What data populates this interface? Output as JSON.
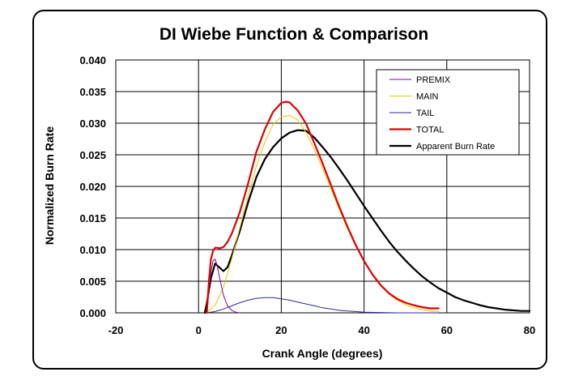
{
  "chart_data": {
    "type": "line",
    "title": "DI Wiebe Function & Comparison",
    "xlabel": "Crank Angle (degrees)",
    "ylabel": "Normalized Burn Rate",
    "xlim": [
      -20,
      80
    ],
    "ylim": [
      0,
      0.04
    ],
    "xticks": [
      "-20",
      "0",
      "20",
      "40",
      "60",
      "80"
    ],
    "yticks": [
      "0.000",
      "0.005",
      "0.010",
      "0.015",
      "0.020",
      "0.025",
      "0.030",
      "0.035",
      "0.040"
    ],
    "grid": true,
    "legend_position": "top-right",
    "series": [
      {
        "name": "PREMIX",
        "color": "#8000a0",
        "width": 1,
        "x": [
          2,
          2.5,
          3,
          3.5,
          4,
          4.5,
          5,
          6,
          7,
          8,
          9,
          10
        ],
        "y": [
          0,
          0.0035,
          0.0065,
          0.0082,
          0.0085,
          0.0075,
          0.0058,
          0.0028,
          0.0011,
          0.0004,
          0.0001,
          0
        ]
      },
      {
        "name": "MAIN",
        "color": "#e8c800",
        "width": 1,
        "x": [
          2,
          4,
          6,
          8,
          10,
          12,
          14,
          16,
          18,
          20,
          22,
          24,
          26,
          28,
          30,
          32,
          34,
          36,
          38,
          40,
          42,
          44,
          46,
          48,
          50,
          52,
          54,
          56,
          58
        ],
        "y": [
          0,
          0.0012,
          0.004,
          0.0085,
          0.0135,
          0.0185,
          0.0232,
          0.027,
          0.0298,
          0.031,
          0.0312,
          0.0305,
          0.0285,
          0.0258,
          0.0228,
          0.0196,
          0.0164,
          0.0133,
          0.0105,
          0.0081,
          0.006,
          0.0043,
          0.003,
          0.002,
          0.0013,
          0.0008,
          0.0005,
          0.0003,
          0.0002
        ]
      },
      {
        "name": "TAIL",
        "color": "#2a2a9a",
        "width": 1,
        "x": [
          2,
          4,
          6,
          8,
          10,
          12,
          14,
          16,
          18,
          20,
          22,
          24,
          26,
          28,
          30,
          32,
          34,
          36,
          38,
          40,
          44,
          48,
          58
        ],
        "y": [
          0,
          0.0002,
          0.0006,
          0.0011,
          0.0016,
          0.002,
          0.0023,
          0.0024,
          0.0024,
          0.0022,
          0.002,
          0.0017,
          0.0014,
          0.0011,
          0.0008,
          0.0006,
          0.0004,
          0.0003,
          0.0002,
          0.0001,
          5e-05,
          0,
          0
        ]
      },
      {
        "name": "TOTAL",
        "color": "#e00000",
        "width": 2.2,
        "x": [
          2,
          2.5,
          3,
          3.5,
          4,
          4.5,
          5,
          6,
          7,
          8,
          9,
          10,
          12,
          14,
          16,
          18,
          20,
          21,
          22,
          24,
          26,
          28,
          30,
          32,
          34,
          36,
          38,
          40,
          42,
          44,
          46,
          48,
          50,
          52,
          54,
          56,
          58
        ],
        "y": [
          0,
          0.005,
          0.0085,
          0.0098,
          0.0103,
          0.0103,
          0.0102,
          0.0104,
          0.0112,
          0.0125,
          0.0142,
          0.016,
          0.0205,
          0.0255,
          0.029,
          0.0318,
          0.0332,
          0.0334,
          0.0333,
          0.032,
          0.0299,
          0.0268,
          0.0236,
          0.0202,
          0.0168,
          0.0136,
          0.0107,
          0.0082,
          0.0061,
          0.0044,
          0.0031,
          0.0022,
          0.0016,
          0.0012,
          0.0009,
          0.0007,
          0.0007
        ]
      },
      {
        "name": "Apparent Burn Rate",
        "color": "#000000",
        "width": 2.2,
        "x": [
          1.5,
          2,
          3,
          4,
          5,
          6,
          7,
          8,
          10,
          12,
          14,
          16,
          18,
          20,
          22,
          24,
          26,
          28,
          30,
          32,
          34,
          36,
          38,
          40,
          42,
          44,
          46,
          48,
          50,
          52,
          54,
          56,
          58,
          60,
          62,
          64,
          66,
          68,
          70,
          72,
          74,
          76,
          78,
          80
        ],
        "y": [
          0,
          0.0015,
          0.0055,
          0.0078,
          0.0072,
          0.0066,
          0.0072,
          0.009,
          0.013,
          0.0175,
          0.0215,
          0.0243,
          0.0262,
          0.0276,
          0.0285,
          0.0289,
          0.0288,
          0.0277,
          0.0262,
          0.0246,
          0.0228,
          0.0209,
          0.0189,
          0.0169,
          0.015,
          0.0131,
          0.0113,
          0.0097,
          0.0083,
          0.007,
          0.0058,
          0.0048,
          0.0039,
          0.0032,
          0.0025,
          0.002,
          0.0016,
          0.0012,
          0.0009,
          0.0007,
          0.0005,
          0.0004,
          0.0003,
          0.0003
        ]
      }
    ]
  }
}
